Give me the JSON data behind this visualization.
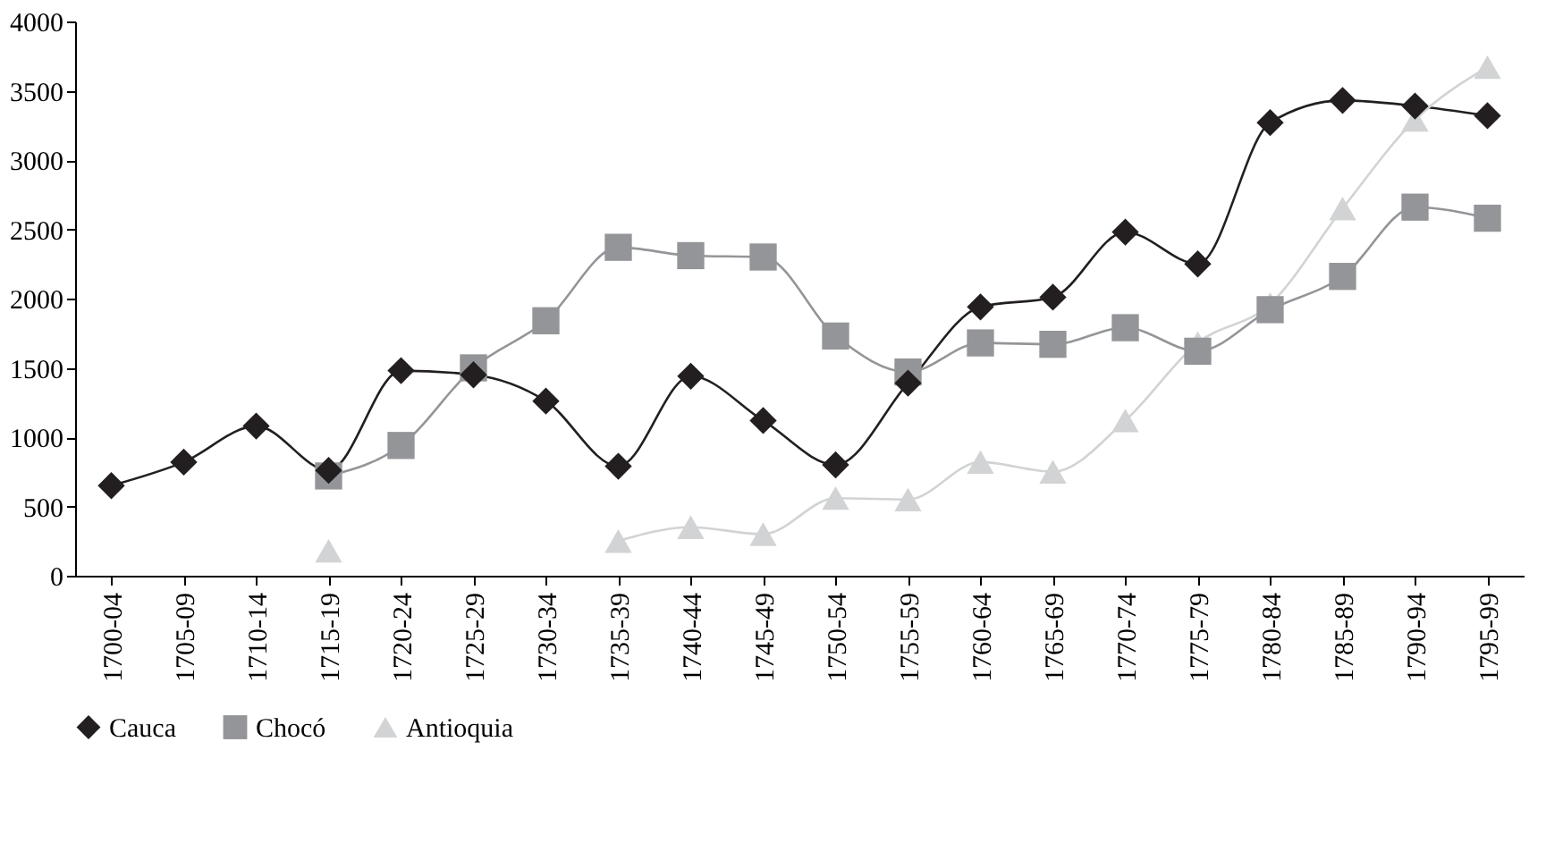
{
  "chart_data": {
    "type": "line",
    "categories": [
      "1700-04",
      "1705-09",
      "1710-14",
      "1715-19",
      "1720-24",
      "1725-29",
      "1730-34",
      "1735-39",
      "1740-44",
      "1745-49",
      "1750-54",
      "1755-59",
      "1760-64",
      "1765-69",
      "1770-74",
      "1775-79",
      "1780-84",
      "1785-89",
      "1790-94",
      "1795-99"
    ],
    "series": [
      {
        "name": "Cauca",
        "color": "#231f20",
        "marker": "diamond",
        "values": [
          650,
          820,
          1080,
          760,
          1480,
          1450,
          1260,
          790,
          1440,
          1120,
          800,
          1390,
          1940,
          2010,
          2480,
          2250,
          3270,
          3430,
          3390,
          3320
        ]
      },
      {
        "name": "Chocó",
        "color": "#939598",
        "marker": "square",
        "values": [
          null,
          null,
          null,
          720,
          940,
          1500,
          1840,
          2370,
          2310,
          2300,
          1730,
          1470,
          1680,
          1670,
          1790,
          1620,
          1920,
          2160,
          2660,
          2580
        ]
      },
      {
        "name": "Antioquia",
        "color": "#d1d3d4",
        "marker": "triangle",
        "values": [
          null,
          null,
          null,
          180,
          null,
          null,
          null,
          250,
          350,
          300,
          560,
          550,
          820,
          750,
          1120,
          1680,
          1960,
          2650,
          3290,
          3670
        ]
      }
    ],
    "ylim": [
      0,
      4000
    ],
    "yticks": [
      0,
      500,
      1000,
      1500,
      2000,
      2500,
      3000,
      3500,
      4000
    ],
    "grid": false,
    "legend": "bottom",
    "line_style": "solid"
  }
}
